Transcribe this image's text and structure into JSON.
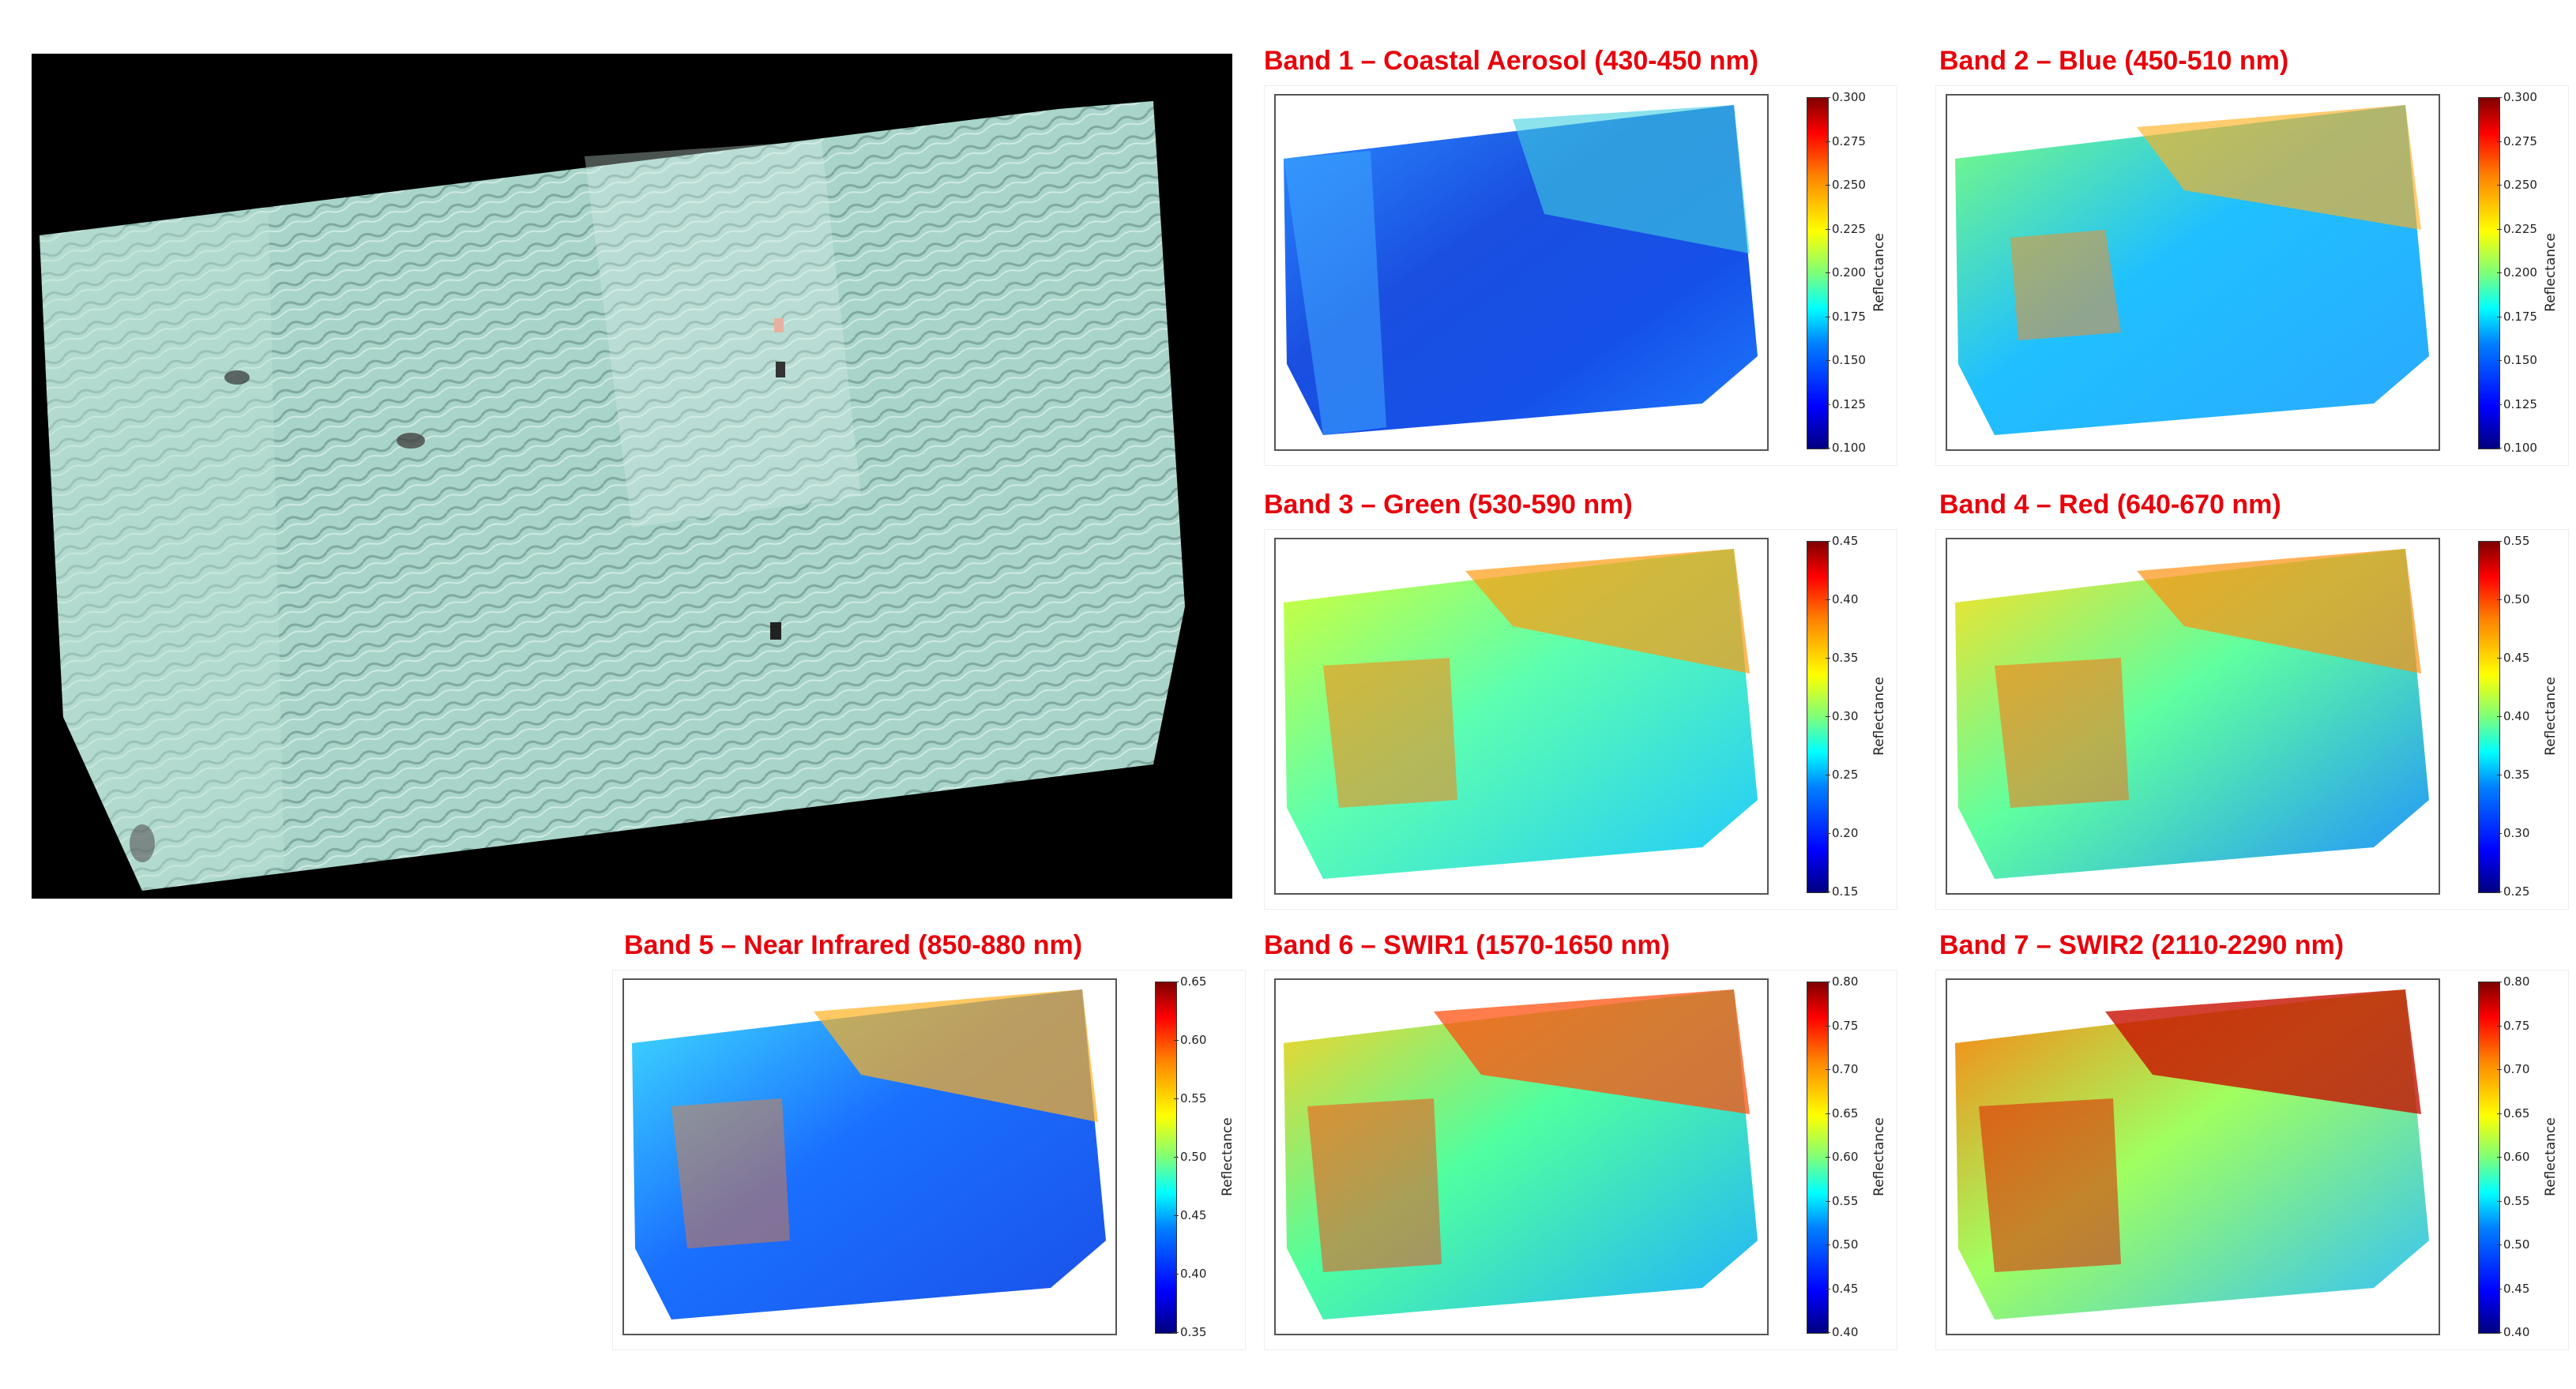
{
  "mosaic": {
    "description_icon": "rgb-mosaic-image"
  },
  "colormap": "jet",
  "colorbar_label": "Reflectance",
  "bands": [
    {
      "title": "Band 1 – Coastal Aerosol (430-450 nm)",
      "ticks": [
        "0.300",
        "0.275",
        "0.250",
        "0.225",
        "0.200",
        "0.175",
        "0.150",
        "0.125",
        "0.100"
      ],
      "tint": "blue"
    },
    {
      "title": "Band 2 – Blue (450-510 nm)",
      "ticks": [
        "0.300",
        "0.275",
        "0.250",
        "0.225",
        "0.200",
        "0.175",
        "0.150",
        "0.125",
        "0.100"
      ],
      "tint": "cyan"
    },
    {
      "title": "Band 3 – Green (530-590 nm)",
      "ticks": [
        "0.45",
        "0.40",
        "0.35",
        "0.30",
        "0.25",
        "0.20",
        "0.15"
      ],
      "tint": "yellow"
    },
    {
      "title": "Band 4 – Red (640-670 nm)",
      "ticks": [
        "0.55",
        "0.50",
        "0.45",
        "0.40",
        "0.35",
        "0.30",
        "0.25"
      ],
      "tint": "yellow"
    },
    {
      "title": "Band 5 – Near Infrared (850-880 nm)",
      "ticks": [
        "0.65",
        "0.60",
        "0.55",
        "0.50",
        "0.45",
        "0.40",
        "0.35"
      ],
      "tint": "blue"
    },
    {
      "title": "Band 6 – SWIR1 (1570-1650 nm)",
      "ticks": [
        "0.80",
        "0.75",
        "0.70",
        "0.65",
        "0.60",
        "0.55",
        "0.50",
        "0.45",
        "0.40"
      ],
      "tint": "orange"
    },
    {
      "title": "Band 7 – SWIR2 (2110-2290 nm)",
      "ticks": [
        "0.80",
        "0.75",
        "0.70",
        "0.65",
        "0.60",
        "0.55",
        "0.50",
        "0.45",
        "0.40"
      ],
      "tint": "red"
    }
  ]
}
